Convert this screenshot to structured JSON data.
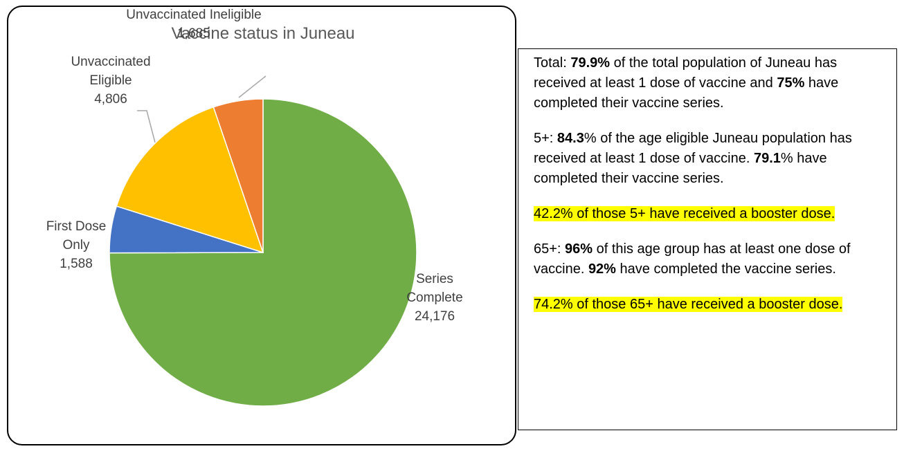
{
  "chart_data": {
    "type": "pie",
    "title": "Vaccine status in Juneau",
    "categories": [
      "Series Complete",
      "First Dose Only",
      "Unvaccinated Eligible",
      "Unvaccinated Ineligible"
    ],
    "values": [
      24176,
      1588,
      4806,
      1685
    ],
    "value_labels": [
      "24,176",
      "1,588",
      "4,806",
      "1,685"
    ],
    "colors": [
      "#70ad47",
      "#4472c4",
      "#ffc000",
      "#ed7d31"
    ]
  },
  "panel": {
    "paragraphs": [
      {
        "runs": [
          {
            "text": "Total: "
          },
          {
            "text": "79.9%",
            "bold": true
          },
          {
            "text": " of the total population of Juneau has received at least 1 dose of vaccine and "
          },
          {
            "text": "75%",
            "bold": true
          },
          {
            "text": " have completed their vaccine series."
          }
        ]
      },
      {
        "runs": [
          {
            "text": "5+: "
          },
          {
            "text": "84.3",
            "bold": true
          },
          {
            "text": "% of the age eligible Juneau population has received at least 1 dose of vaccine.  "
          },
          {
            "text": "79.1",
            "bold": true
          },
          {
            "text": "% have completed their vaccine series."
          }
        ]
      },
      {
        "highlight": true,
        "runs": [
          {
            "text": "42.2% of those 5+ have received a booster dose."
          }
        ]
      },
      {
        "runs": [
          {
            "text": "65+: "
          },
          {
            "text": "96%",
            "bold": true
          },
          {
            "text": " of this age group has at least one dose of vaccine.  "
          },
          {
            "text": "92%",
            "bold": true
          },
          {
            "text": " have completed the vaccine series."
          }
        ]
      },
      {
        "highlight": true,
        "runs": [
          {
            "text": "74.2% of those 65+ have received a booster dose."
          }
        ]
      }
    ]
  }
}
